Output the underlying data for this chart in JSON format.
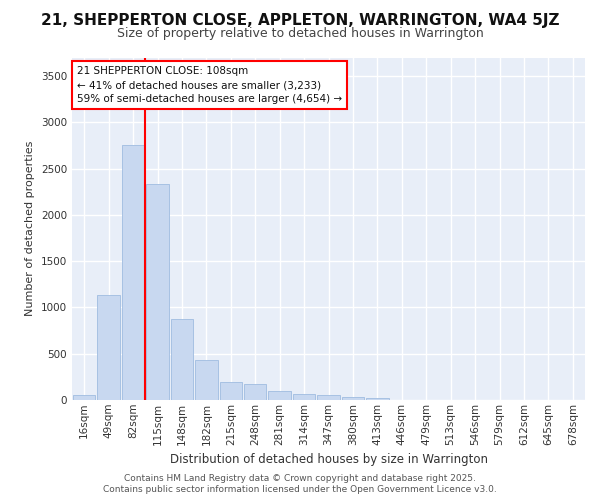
{
  "title_line1": "21, SHEPPERTON CLOSE, APPLETON, WARRINGTON, WA4 5JZ",
  "title_line2": "Size of property relative to detached houses in Warrington",
  "xlabel": "Distribution of detached houses by size in Warrington",
  "ylabel": "Number of detached properties",
  "bar_color": "#c8d8f0",
  "bar_edgecolor": "#a0bce0",
  "categories": [
    "16sqm",
    "49sqm",
    "82sqm",
    "115sqm",
    "148sqm",
    "182sqm",
    "215sqm",
    "248sqm",
    "281sqm",
    "314sqm",
    "347sqm",
    "380sqm",
    "413sqm",
    "446sqm",
    "479sqm",
    "513sqm",
    "546sqm",
    "579sqm",
    "612sqm",
    "645sqm",
    "678sqm"
  ],
  "values": [
    50,
    1130,
    2760,
    2330,
    880,
    430,
    190,
    170,
    95,
    70,
    50,
    35,
    20,
    0,
    0,
    0,
    0,
    0,
    0,
    0,
    0
  ],
  "ylim": [
    0,
    3700
  ],
  "yticks": [
    0,
    500,
    1000,
    1500,
    2000,
    2500,
    3000,
    3500
  ],
  "red_line_x": 2.5,
  "annotation_text": "21 SHEPPERTON CLOSE: 108sqm\n← 41% of detached houses are smaller (3,233)\n59% of semi-detached houses are larger (4,654) →",
  "footer_line1": "Contains HM Land Registry data © Crown copyright and database right 2025.",
  "footer_line2": "Contains public sector information licensed under the Open Government Licence v3.0.",
  "background_color": "#e8eef8",
  "grid_color": "#ffffff",
  "title_fontsize": 11,
  "subtitle_fontsize": 9,
  "xlabel_fontsize": 8.5,
  "ylabel_fontsize": 8,
  "tick_fontsize": 7.5,
  "annotation_fontsize": 7.5,
  "footer_fontsize": 6.5
}
